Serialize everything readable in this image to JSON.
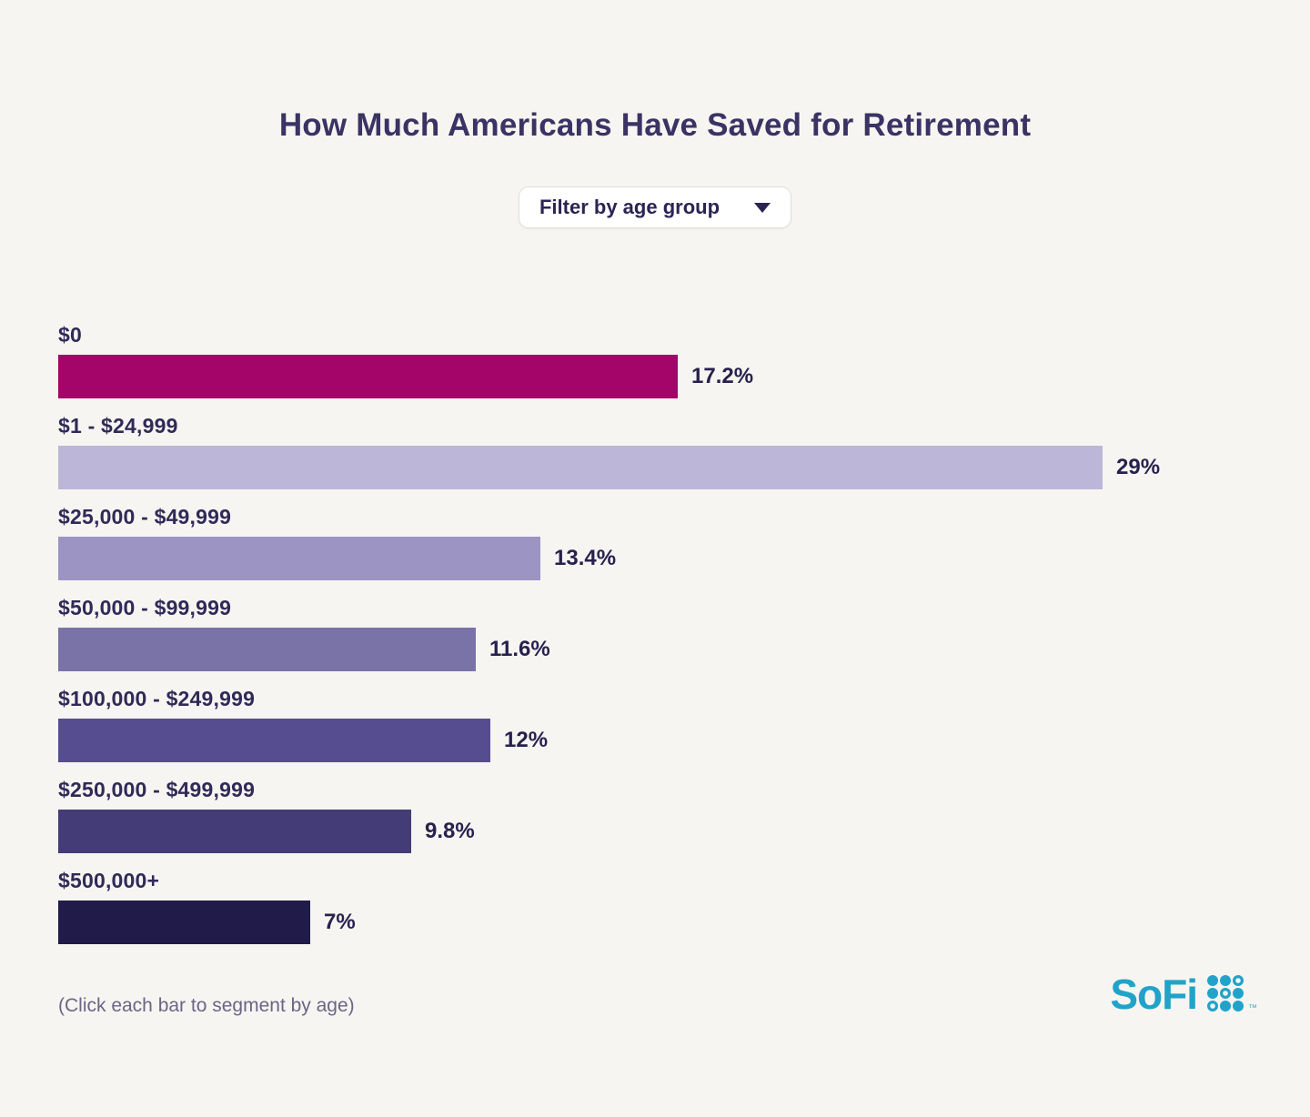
{
  "page": {
    "background": "#F7F5F1"
  },
  "header": {
    "title": "How Much Americans Have Saved for Retirement"
  },
  "filter": {
    "label": "Filter by age group",
    "caret_icon": "chevron-down-triangle"
  },
  "chart_data": {
    "type": "bar",
    "orientation": "horizontal",
    "title": "How Much Americans Have Saved for Retirement",
    "categories": [
      "$0",
      "$1 - $24,999",
      "$25,000 - $49,999",
      "$50,000 - $99,999",
      "$100,000 - $249,999",
      "$250,000 - $499,999",
      "$500,000+"
    ],
    "values": [
      17.2,
      29,
      13.4,
      11.6,
      12,
      9.8,
      7
    ],
    "value_labels": [
      "17.2%",
      "29%",
      "13.4%",
      "11.6%",
      "12%",
      "9.8%",
      "7%"
    ],
    "bar_colors": [
      "#A40569",
      "#BCB7D8",
      "#9C95C4",
      "#7A73A7",
      "#564D91",
      "#443C76",
      "#211B49"
    ],
    "xlim": [
      0,
      29
    ],
    "xlabel": "",
    "ylabel": "",
    "grid": false,
    "legend": false,
    "value_label_position": "right-of-bar",
    "category_label_position": "above-bar"
  },
  "footer": {
    "note": "(Click each bar to segment by age)",
    "brand": {
      "name": "SoFi",
      "color": "#21A3C9",
      "dots_icon": "sofi-dot-grid",
      "trademark": "™"
    }
  }
}
